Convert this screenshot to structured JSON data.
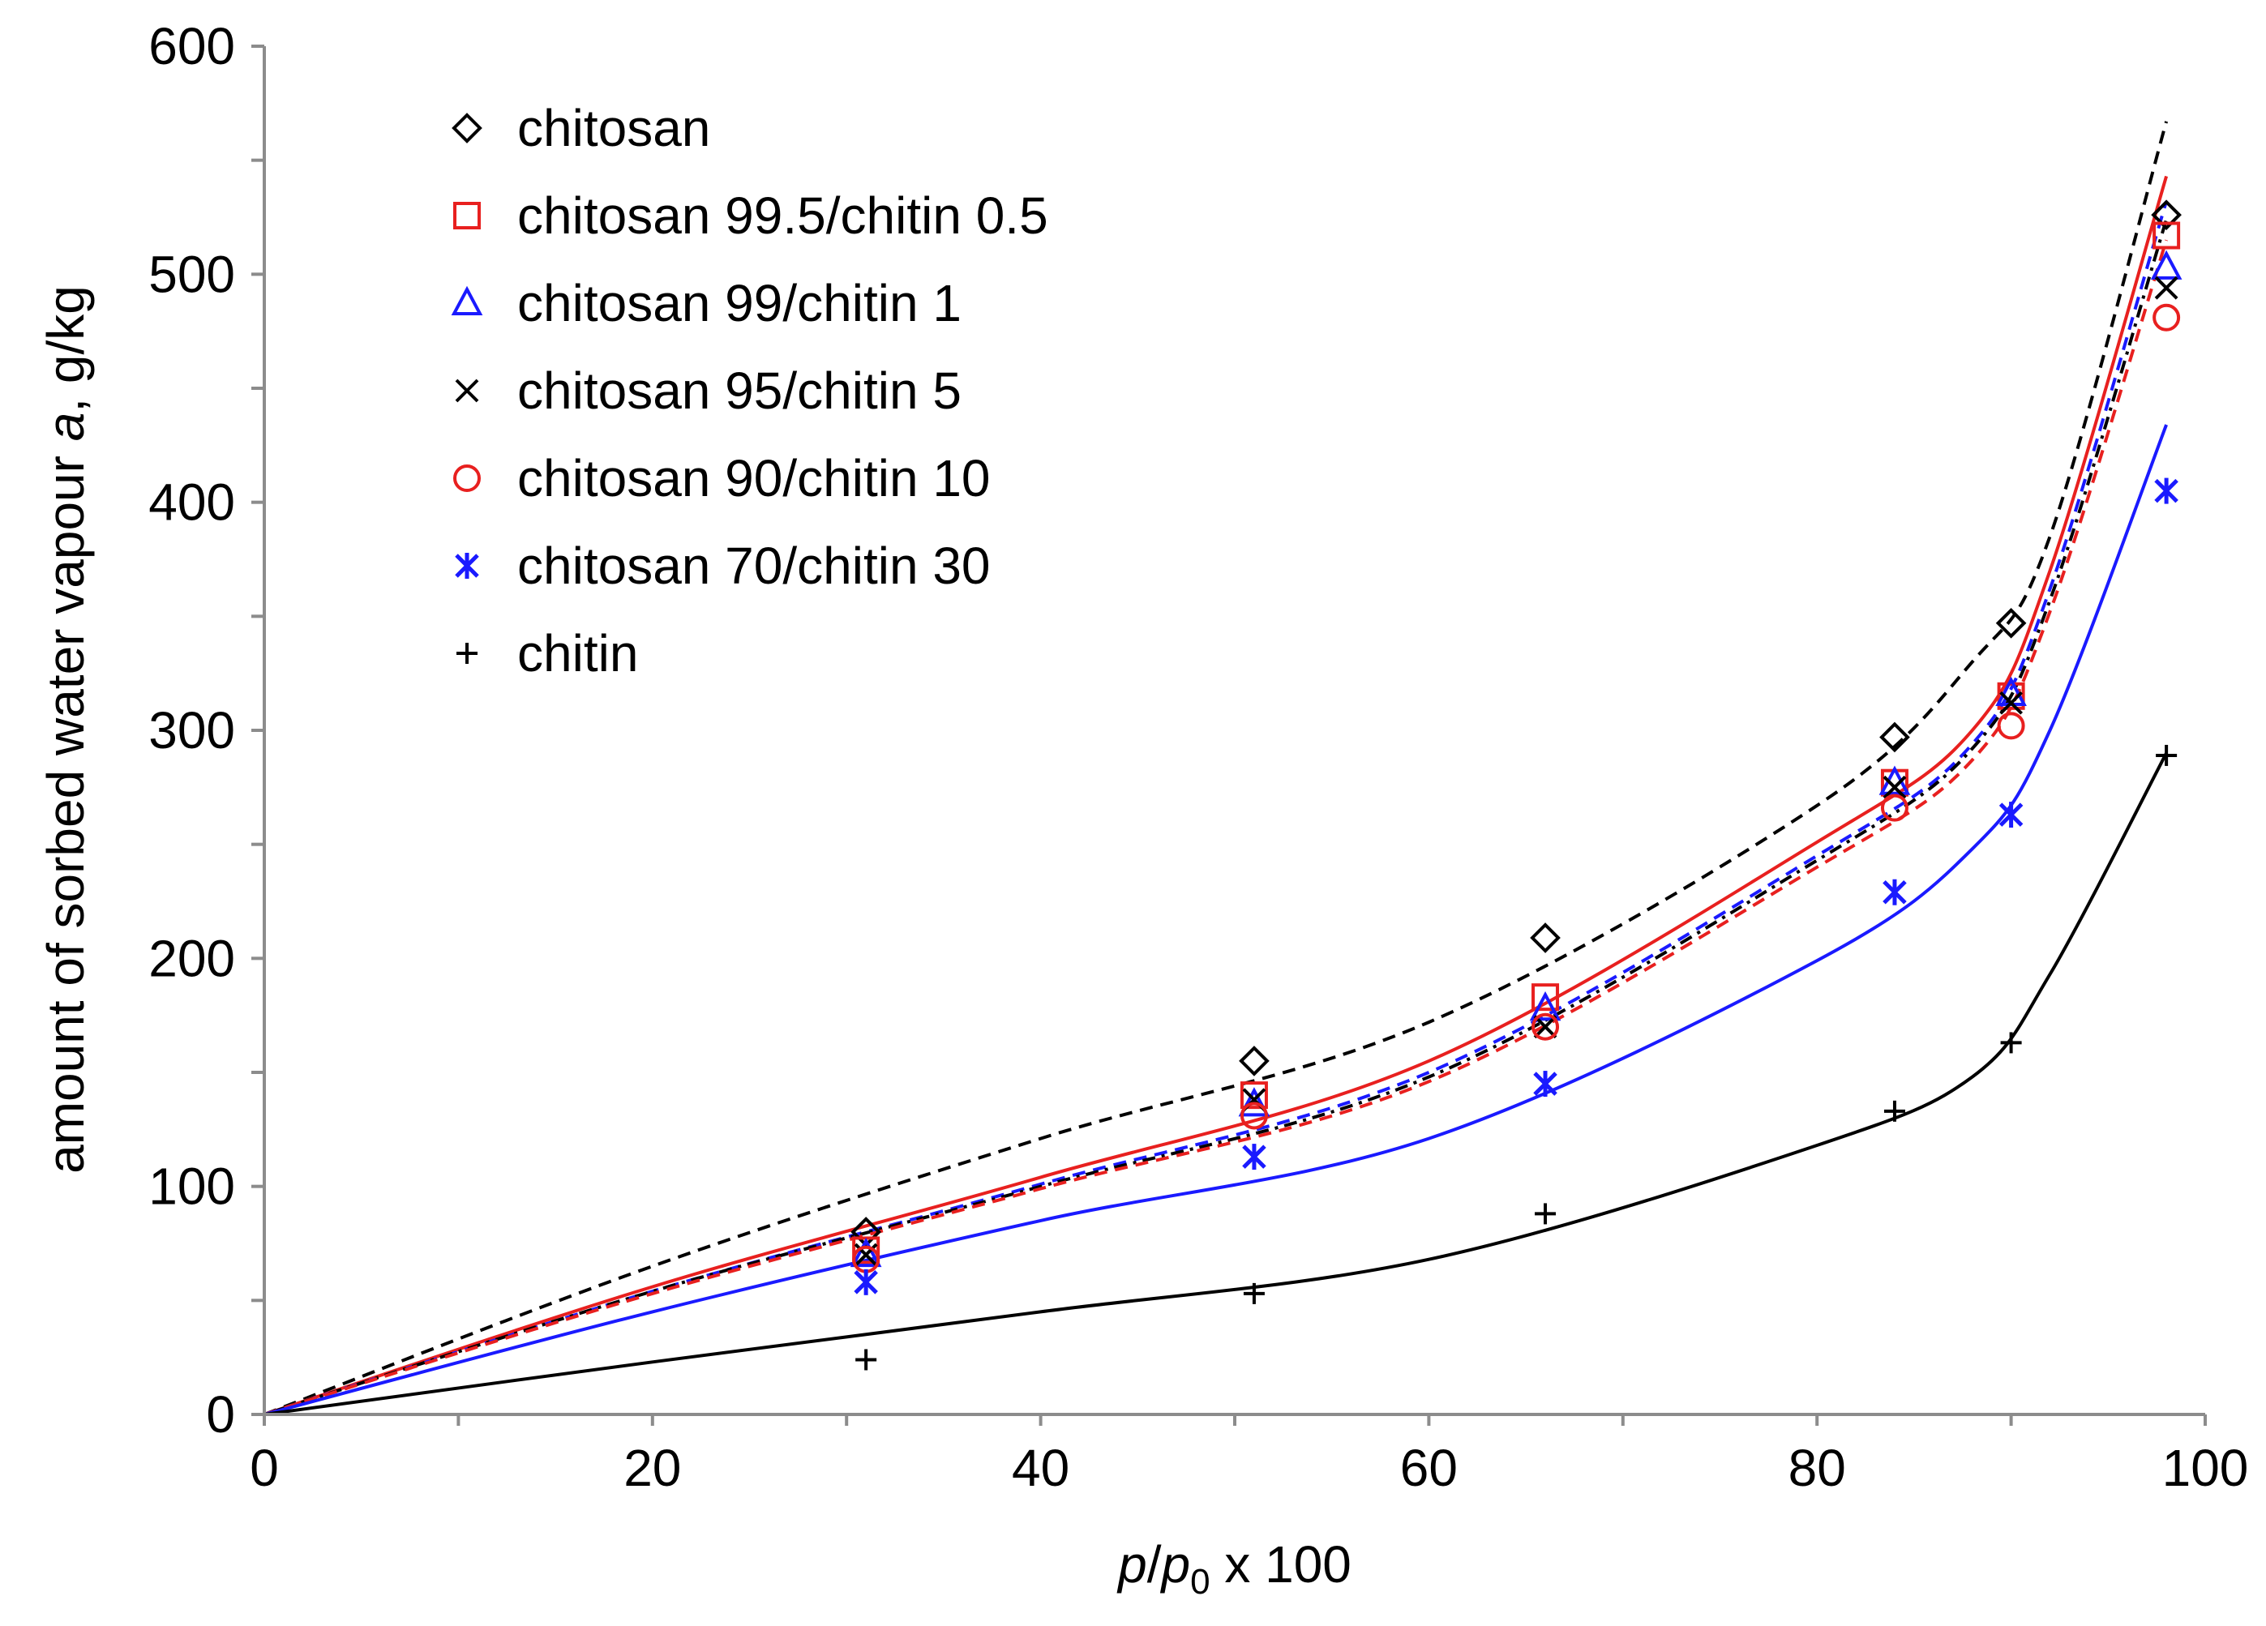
{
  "chart_data": {
    "type": "scatter",
    "title": "",
    "xlabel": {
      "p": "p",
      "slash": "/",
      "p0": "p",
      "sub": "0",
      "rest": " x 100"
    },
    "ylabel": {
      "main": "amount of sorbed water vapour ",
      "italic": "a",
      "unit": ", g/kg"
    },
    "xlim": [
      0,
      100
    ],
    "ylim": [
      0,
      600
    ],
    "x_ticks": [
      "0",
      "20",
      "40",
      "60",
      "80",
      "100"
    ],
    "y_ticks": [
      "0",
      "100",
      "200",
      "300",
      "400",
      "500",
      "600"
    ],
    "x": [
      31,
      51,
      66,
      84,
      90,
      98
    ],
    "legend_position": "top-left",
    "series": [
      {
        "name": "chitosan",
        "marker": "diamond",
        "color": "#000000",
        "values": [
          80,
          155,
          209,
          297,
          347,
          526
        ],
        "fit": {
          "x": [
            0,
            20,
            40,
            60,
            80,
            88,
            92,
            98
          ],
          "y": [
            0,
            65,
            121,
            172,
            267,
            330,
            385,
            567
          ],
          "dash": "16,10",
          "color": "#000000"
        }
      },
      {
        "name": "chitosan 99.5/chitin 0.5",
        "marker": "square",
        "color": "#e8201f",
        "values": [
          72,
          140,
          183,
          277,
          315,
          517
        ],
        "fit": {
          "x": [
            0,
            20,
            40,
            60,
            80,
            88,
            92,
            98
          ],
          "y": [
            0,
            56,
            104,
            155,
            251,
            300,
            370,
            543
          ],
          "dash": "",
          "color": "#e8201f"
        }
      },
      {
        "name": "chitosan 99/chitin 1",
        "marker": "triangle",
        "color": "#1a1aff",
        "values": [
          70,
          136,
          178,
          277,
          316,
          503
        ],
        "fit": {
          "x": [
            0,
            20,
            40,
            60,
            80,
            88,
            92,
            98
          ],
          "y": [
            0,
            54,
            101,
            150,
            245,
            294,
            362,
            532
          ],
          "dash": "16,10",
          "color": "#1a1aff"
        }
      },
      {
        "name": "chitosan 95/chitin 5",
        "marker": "cross",
        "color": "#000000",
        "values": [
          70,
          138,
          170,
          275,
          312,
          494
        ],
        "fit": {
          "x": [
            0,
            20,
            40,
            60,
            80,
            88,
            92,
            98
          ],
          "y": [
            0,
            54,
            100,
            148,
            243,
            292,
            357,
            524
          ],
          "dash": "4,8,16,8",
          "color": "#000000"
        }
      },
      {
        "name": "chitosan 90/chitin 10",
        "marker": "circle",
        "color": "#e8201f",
        "values": [
          68,
          131,
          170,
          266,
          302,
          481
        ],
        "fit": {
          "x": [
            0,
            20,
            40,
            60,
            80,
            88,
            92,
            98
          ],
          "y": [
            0,
            53,
            99,
            146,
            240,
            287,
            352,
            515
          ],
          "dash": "16,10",
          "color": "#e8201f"
        }
      },
      {
        "name": "chitosan 70/chitin 30",
        "marker": "asterisk",
        "color": "#1a1aff",
        "values": [
          58,
          113,
          145,
          229,
          263,
          405
        ],
        "fit": {
          "x": [
            0,
            20,
            40,
            60,
            80,
            88,
            92,
            98
          ],
          "y": [
            0,
            45,
            85,
            121,
            199,
            248,
            300,
            434
          ],
          "dash": "",
          "color": "#1a1aff"
        }
      },
      {
        "name": "chitin",
        "marker": "plus",
        "color": "#000000",
        "values": [
          24,
          53,
          88,
          133,
          163,
          289
        ],
        "fit": {
          "x": [
            0,
            20,
            40,
            60,
            80,
            88,
            92,
            98
          ],
          "y": [
            0,
            23,
            45,
            68,
            118,
            148,
            193,
            290
          ],
          "dash": "",
          "color": "#000000"
        }
      }
    ]
  }
}
